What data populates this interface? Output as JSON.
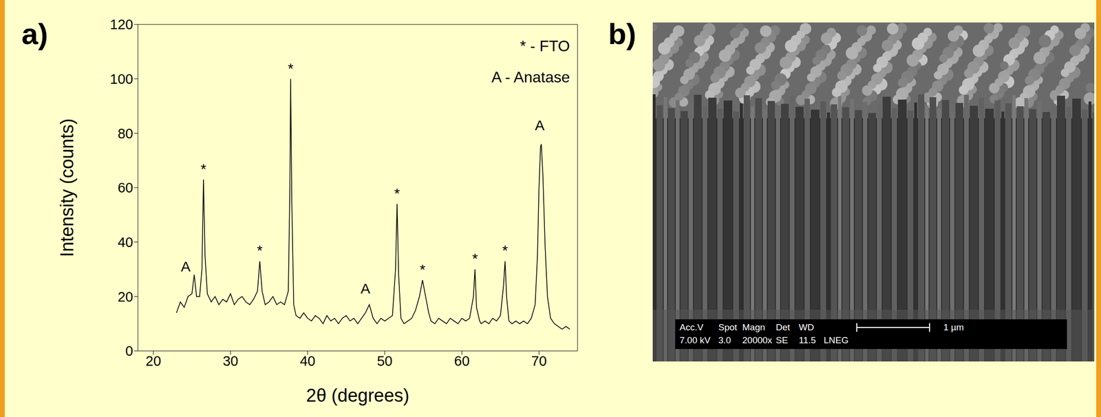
{
  "chart_data": {
    "type": "line",
    "x_label": "2θ (degrees)",
    "y_label": "Intensity (counts)",
    "xlim": [
      18,
      75
    ],
    "xticks": [
      20,
      30,
      40,
      50,
      60,
      70
    ],
    "ylim": [
      0,
      120
    ],
    "yticks": [
      0,
      20,
      40,
      60,
      80,
      100,
      120
    ],
    "color": "#000000",
    "x": [
      23,
      23.5,
      24,
      24.5,
      25,
      25.3,
      25.6,
      26,
      26.3,
      26.5,
      26.7,
      27,
      27.5,
      28,
      28.5,
      29,
      29.5,
      30,
      30.5,
      31,
      31.5,
      32,
      32.5,
      33,
      33.5,
      33.8,
      34.1,
      34.5,
      35,
      35.5,
      36,
      36.5,
      37,
      37.5,
      37.7,
      37.8,
      37.95,
      38.2,
      38.5,
      39,
      39.5,
      40,
      40.5,
      41,
      41.5,
      42,
      42.5,
      43,
      43.5,
      44,
      44.5,
      45,
      45.5,
      46,
      46.5,
      47,
      47.5,
      48,
      48.5,
      49,
      49.5,
      50,
      50.5,
      51,
      51.4,
      51.6,
      51.8,
      52.1,
      52.5,
      53,
      53.5,
      54,
      54.5,
      54.9,
      55.3,
      55.7,
      56,
      56.5,
      57,
      57.5,
      58,
      58.5,
      59,
      59.5,
      60,
      60.5,
      61,
      61.5,
      61.7,
      61.9,
      62.3,
      62.5,
      63,
      63.5,
      64,
      64.5,
      65,
      65.4,
      65.6,
      65.8,
      66.1,
      66.5,
      67,
      67.5,
      68,
      68.5,
      69,
      69.5,
      69.8,
      70,
      70.2,
      70.3,
      70.5,
      70.8,
      71.1,
      71.5,
      72,
      72.5,
      73,
      73.5,
      74
    ],
    "values": [
      14,
      18,
      16,
      20,
      21,
      28,
      20,
      20,
      30,
      63,
      35,
      21,
      18,
      20,
      17,
      19,
      18,
      21,
      17,
      19,
      20,
      18,
      17,
      19,
      22,
      33,
      22,
      17,
      18,
      20,
      17,
      18,
      17,
      22,
      60,
      100,
      55,
      17,
      13,
      12,
      14,
      12,
      11,
      13,
      12,
      10,
      13,
      11,
      12,
      10,
      12,
      13,
      11,
      12,
      10,
      12,
      14,
      17,
      12,
      10,
      12,
      11,
      12,
      13,
      30,
      54,
      28,
      12,
      10,
      11,
      12,
      15,
      20,
      26,
      20,
      14,
      11,
      10,
      12,
      11,
      10,
      12,
      11,
      10,
      12,
      11,
      12,
      20,
      30,
      16,
      11,
      10,
      11,
      10,
      12,
      11,
      13,
      24,
      33,
      20,
      11,
      10,
      11,
      10,
      11,
      10,
      12,
      17,
      35,
      60,
      75,
      76,
      65,
      38,
      20,
      12,
      10,
      9,
      8,
      9,
      8
    ],
    "annotations": [
      {
        "x": 26.5,
        "y": 67,
        "label": "*"
      },
      {
        "x": 33.8,
        "y": 37,
        "label": "*"
      },
      {
        "x": 37.8,
        "y": 104,
        "label": "*"
      },
      {
        "x": 51.6,
        "y": 58,
        "label": "*"
      },
      {
        "x": 54.9,
        "y": 30,
        "label": "*"
      },
      {
        "x": 61.7,
        "y": 34,
        "label": "*"
      },
      {
        "x": 65.6,
        "y": 37,
        "label": "*"
      },
      {
        "x": 24.2,
        "y": 31,
        "label": "A"
      },
      {
        "x": 47.5,
        "y": 23,
        "label": "A"
      },
      {
        "x": 70.1,
        "y": 83,
        "label": "A"
      }
    ],
    "key_texts": [
      "* - FTO",
      "A - Anatase"
    ]
  },
  "panel_labels": [
    "a)",
    "b)"
  ],
  "sem_image": {
    "info_header": [
      "Acc.V",
      "Spot",
      "Magn",
      "Det",
      "WD"
    ],
    "info_values": [
      "7.00 kV",
      "3.0",
      "20000x",
      "SE",
      "11.5",
      "LNEG"
    ],
    "scale_bar": "1 µm"
  }
}
